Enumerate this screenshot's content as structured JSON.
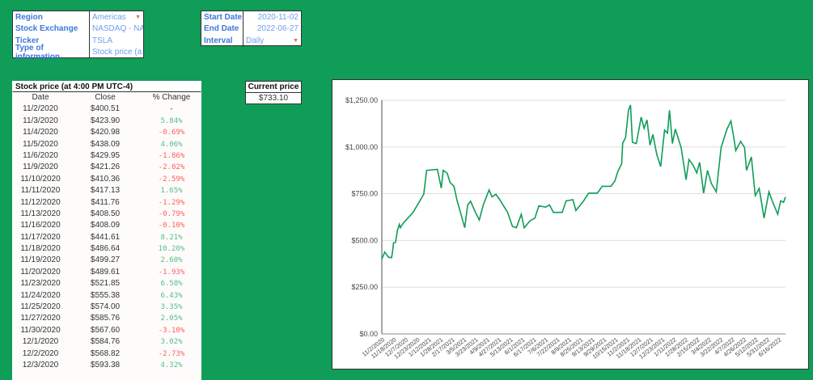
{
  "selectors_left": [
    {
      "label": "Region",
      "value": "Americas",
      "dropdown": true
    },
    {
      "label": "Stock Exchange",
      "value": "NASDAQ - NA",
      "dropdown": true
    },
    {
      "label": "Ticker",
      "value": "TSLA",
      "dropdown": false
    },
    {
      "label": "Type of information",
      "value": "Stock price (a",
      "dropdown": true
    }
  ],
  "selectors_right": [
    {
      "label": "Start Date",
      "value": "2020-11-02",
      "dropdown": false
    },
    {
      "label": "End Date",
      "value": "2022-06-27",
      "dropdown": false
    },
    {
      "label": "Interval",
      "value": "Daily",
      "dropdown": true
    }
  ],
  "dropdown_glyph": "▼",
  "stock_table": {
    "title": "Stock price (at 4:00 PM UTC-4)",
    "headers": [
      "Date",
      "Close",
      "% Change"
    ],
    "rows": [
      [
        "11/2/2020",
        "$400.51",
        "-"
      ],
      [
        "11/3/2020",
        "$423.90",
        "5.84%"
      ],
      [
        "11/4/2020",
        "$420.98",
        "-0.69%"
      ],
      [
        "11/5/2020",
        "$438.09",
        "4.06%"
      ],
      [
        "11/6/2020",
        "$429.95",
        "-1.86%"
      ],
      [
        "11/9/2020",
        "$421.26",
        "-2.02%"
      ],
      [
        "11/10/2020",
        "$410.36",
        "-2.59%"
      ],
      [
        "11/11/2020",
        "$417.13",
        "1.65%"
      ],
      [
        "11/12/2020",
        "$411.76",
        "-1.29%"
      ],
      [
        "11/13/2020",
        "$408.50",
        "-0.79%"
      ],
      [
        "11/16/2020",
        "$408.09",
        "-0.10%"
      ],
      [
        "11/17/2020",
        "$441.61",
        "8.21%"
      ],
      [
        "11/18/2020",
        "$486.64",
        "10.20%"
      ],
      [
        "11/19/2020",
        "$499.27",
        "2.60%"
      ],
      [
        "11/20/2020",
        "$489.61",
        "-1.93%"
      ],
      [
        "11/23/2020",
        "$521.85",
        "6.58%"
      ],
      [
        "11/24/2020",
        "$555.38",
        "6.43%"
      ],
      [
        "11/25/2020",
        "$574.00",
        "3.35%"
      ],
      [
        "11/27/2020",
        "$585.76",
        "2.05%"
      ],
      [
        "11/30/2020",
        "$567.60",
        "-3.10%"
      ],
      [
        "12/1/2020",
        "$584.76",
        "3.02%"
      ],
      [
        "12/2/2020",
        "$568.82",
        "-2.73%"
      ],
      [
        "12/3/2020",
        "$593.38",
        "4.32%"
      ]
    ]
  },
  "current_price": {
    "label": "Current price",
    "value": "$733.10"
  },
  "colors": {
    "line": "#0f9d58",
    "pos": "#57bb8a",
    "neg": "#ff5b5b",
    "label": "#3c78d8"
  },
  "chart_data": {
    "type": "line",
    "ylim": [
      0,
      1250
    ],
    "yticks": [
      0,
      250,
      500,
      750,
      1000,
      1250
    ],
    "ytick_labels": [
      "$0.00",
      "$250.00",
      "$500.00",
      "$750.00",
      "$1,000.00",
      "$1,250.00"
    ],
    "x_tick_labels": [
      "11/2/2020",
      "11/18/2020",
      "12/7/2020",
      "12/23/2020",
      "1/12/2021",
      "1/28/2021",
      "2/17/2021",
      "3/5/2021",
      "3/23/2021",
      "4/9/2021",
      "4/27/2021",
      "5/13/2021",
      "6/1/2021",
      "6/17/2021",
      "7/6/2021",
      "7/22/2021",
      "8/9/2021",
      "8/25/2021",
      "9/13/2021",
      "9/29/2021",
      "10/15/2021",
      "11/2/2021",
      "11/18/2021",
      "12/7/2021",
      "12/23/2021",
      "1/11/2022",
      "1/28/2022",
      "2/15/2022",
      "3/4/2022",
      "3/22/2022",
      "4/7/2022",
      "4/26/2022",
      "5/12/2022",
      "5/31/2022",
      "6/16/2022"
    ],
    "x_unit": "trading day index from 11/2/2020",
    "x_max": 414,
    "series": [
      {
        "name": "Close",
        "points": [
          [
            0,
            400
          ],
          [
            3,
            438
          ],
          [
            7,
            410
          ],
          [
            10,
            408
          ],
          [
            11,
            442
          ],
          [
            12,
            487
          ],
          [
            14,
            490
          ],
          [
            16,
            555
          ],
          [
            18,
            586
          ],
          [
            19,
            568
          ],
          [
            22,
            593
          ],
          [
            32,
            650
          ],
          [
            43,
            747
          ],
          [
            46,
            875
          ],
          [
            57,
            880
          ],
          [
            61,
            780
          ],
          [
            63,
            875
          ],
          [
            67,
            860
          ],
          [
            70,
            810
          ],
          [
            74,
            790
          ],
          [
            77,
            718
          ],
          [
            85,
            568
          ],
          [
            88,
            690
          ],
          [
            91,
            710
          ],
          [
            96,
            650
          ],
          [
            100,
            610
          ],
          [
            104,
            690
          ],
          [
            110,
            770
          ],
          [
            113,
            733
          ],
          [
            117,
            747
          ],
          [
            121,
            718
          ],
          [
            129,
            650
          ],
          [
            134,
            575
          ],
          [
            138,
            568
          ],
          [
            143,
            640
          ],
          [
            146,
            568
          ],
          [
            152,
            605
          ],
          [
            157,
            620
          ],
          [
            161,
            685
          ],
          [
            168,
            678
          ],
          [
            172,
            690
          ],
          [
            176,
            650
          ],
          [
            185,
            650
          ],
          [
            189,
            712
          ],
          [
            196,
            718
          ],
          [
            199,
            660
          ],
          [
            207,
            712
          ],
          [
            212,
            753
          ],
          [
            221,
            753
          ],
          [
            226,
            790
          ],
          [
            235,
            790
          ],
          [
            239,
            818
          ],
          [
            242,
            868
          ],
          [
            246,
            910
          ],
          [
            247,
            1020
          ],
          [
            250,
            1050
          ],
          [
            253,
            1197
          ],
          [
            255,
            1225
          ],
          [
            257,
            1025
          ],
          [
            261,
            1018
          ],
          [
            266,
            1160
          ],
          [
            269,
            1100
          ],
          [
            272,
            1145
          ],
          [
            275,
            1010
          ],
          [
            278,
            1067
          ],
          [
            282,
            960
          ],
          [
            286,
            895
          ],
          [
            290,
            1090
          ],
          [
            293,
            1075
          ],
          [
            295,
            1197
          ],
          [
            298,
            1018
          ],
          [
            301,
            1096
          ],
          [
            307,
            997
          ],
          [
            312,
            825
          ],
          [
            315,
            933
          ],
          [
            319,
            905
          ],
          [
            323,
            861
          ],
          [
            326,
            918
          ],
          [
            330,
            753
          ],
          [
            334,
            875
          ],
          [
            338,
            804
          ],
          [
            343,
            760
          ],
          [
            348,
            997
          ],
          [
            354,
            1096
          ],
          [
            358,
            1139
          ],
          [
            361,
            1050
          ],
          [
            363,
            980
          ],
          [
            368,
            1030
          ],
          [
            372,
            997
          ],
          [
            374,
            875
          ],
          [
            379,
            947
          ],
          [
            383,
            740
          ],
          [
            387,
            778
          ],
          [
            392,
            620
          ],
          [
            397,
            760
          ],
          [
            401,
            704
          ],
          [
            406,
            640
          ],
          [
            409,
            712
          ],
          [
            412,
            704
          ],
          [
            414,
            733
          ]
        ]
      }
    ]
  }
}
